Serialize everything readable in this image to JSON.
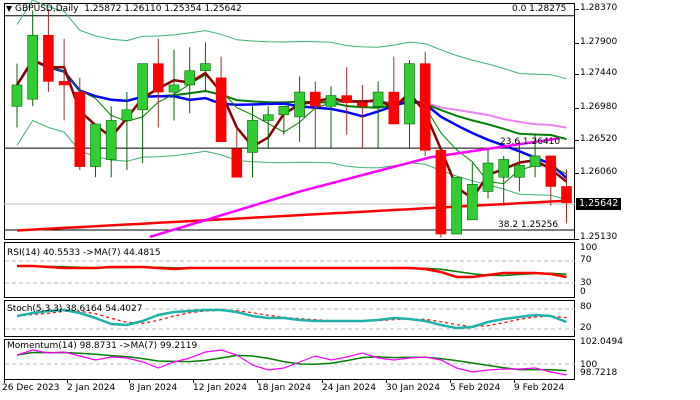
{
  "header": {
    "symbol": "GBPUSD,Daily",
    "ohlc": "1.25872 1.26110 1.25354 1.25642",
    "menu_icon": "triangle-down-icon"
  },
  "fib_levels": [
    {
      "label": "0.0 1.28275",
      "price": 1.28275
    },
    {
      "label": "23.6 1.26410",
      "price": 1.2641
    },
    {
      "label": "38.2 1.25256",
      "price": 1.25256
    }
  ],
  "price_axis": [
    "1.28370",
    "1.27900",
    "1.27440",
    "1.26980",
    "1.26520",
    "1.26060",
    "1.25130"
  ],
  "current_price": "1.25642",
  "indicators": {
    "rsi": {
      "label": "RSI(14) 40.5533  ->MA(7) 44.4815",
      "levels": [
        "100",
        "70",
        "30",
        "0"
      ]
    },
    "stoch": {
      "label": "Stoch(5,3,3) 38.6164 54.4027",
      "levels": [
        "80",
        "100",
        "20",
        "0"
      ]
    },
    "momentum": {
      "label": "Momentum(14) 98.8731  ->MA(7) 99.2119",
      "levels": [
        "102.0494",
        "100",
        "98.7218"
      ]
    }
  },
  "date_axis": [
    "26 Dec 2023",
    "2 Jan 2024",
    "8 Jan 2024",
    "12 Jan 2024",
    "18 Jan 2024",
    "24 Jan 2024",
    "30 Jan 2024",
    "5 Feb 2024",
    "9 Feb 2024"
  ],
  "colors": {
    "bull": "#32cd32",
    "bear": "#ff0000",
    "ma_blue": "#0000ff",
    "ma_maroon": "#8b0000",
    "ma_green": "#008000",
    "ma_violet": "#ee82ee",
    "ma_magenta": "#ff00ff",
    "bollinger": "#3cb371",
    "ma_red": "#ff0000"
  },
  "chart_data": {
    "type": "candlestick",
    "title": "GBPUSD, Daily",
    "x": [
      "26 Dec",
      "27 Dec",
      "28 Dec",
      "29 Dec",
      "2 Jan",
      "3 Jan",
      "4 Jan",
      "5 Jan",
      "8 Jan",
      "9 Jan",
      "10 Jan",
      "11 Jan",
      "12 Jan",
      "15 Jan",
      "16 Jan",
      "17 Jan",
      "18 Jan",
      "19 Jan",
      "22 Jan",
      "23 Jan",
      "24 Jan",
      "25 Jan",
      "26 Jan",
      "29 Jan",
      "30 Jan",
      "31 Jan",
      "1 Feb",
      "2 Feb",
      "5 Feb",
      "6 Feb",
      "7 Feb",
      "8 Feb",
      "9 Feb",
      "12 Feb",
      "13 Feb",
      "14 Feb"
    ],
    "series": [
      {
        "name": "open",
        "values": [
          1.27,
          1.271,
          1.28,
          1.2735,
          1.272,
          1.2615,
          1.2625,
          1.268,
          1.2695,
          1.276,
          1.272,
          1.273,
          1.275,
          1.274,
          1.264,
          1.2635,
          1.268,
          1.2688,
          1.2685,
          1.272,
          1.27,
          1.2715,
          1.2705,
          1.27,
          1.272,
          1.2675,
          1.276,
          1.2638,
          1.252,
          1.254,
          1.258,
          1.26,
          1.26,
          1.2615,
          1.263,
          1.2587
        ]
      },
      {
        "name": "high",
        "values": [
          1.276,
          1.2835,
          1.2837,
          1.2795,
          1.274,
          1.2675,
          1.27,
          1.272,
          1.275,
          1.2795,
          1.278,
          1.2783,
          1.279,
          1.277,
          1.2672,
          1.27,
          1.27,
          1.2698,
          1.2742,
          1.2735,
          1.2728,
          1.2755,
          1.273,
          1.2735,
          1.277,
          1.2765,
          1.2777,
          1.264,
          1.26,
          1.262,
          1.264,
          1.263,
          1.265,
          1.266,
          1.2605,
          1.2611
        ]
      },
      {
        "name": "low",
        "values": [
          1.267,
          1.27,
          1.272,
          1.268,
          1.261,
          1.26,
          1.26,
          1.261,
          1.262,
          1.267,
          1.268,
          1.269,
          1.272,
          1.266,
          1.262,
          1.26,
          1.264,
          1.266,
          1.265,
          1.264,
          1.264,
          1.266,
          1.264,
          1.264,
          1.27,
          1.264,
          1.263,
          1.2515,
          1.252,
          1.256,
          1.257,
          1.256,
          1.258,
          1.26,
          1.256,
          1.2535
        ]
      },
      {
        "name": "close",
        "values": [
          1.273,
          1.28,
          1.2735,
          1.273,
          1.2615,
          1.2675,
          1.268,
          1.2695,
          1.276,
          1.272,
          1.273,
          1.275,
          1.276,
          1.265,
          1.26,
          1.268,
          1.2688,
          1.27,
          1.272,
          1.27,
          1.2715,
          1.2705,
          1.27,
          1.272,
          1.2675,
          1.276,
          1.2638,
          1.252,
          1.26,
          1.259,
          1.262,
          1.2625,
          1.2617,
          1.263,
          1.2587,
          1.2564
        ]
      }
    ],
    "fibonacci": [
      {
        "level": 0.0,
        "price": 1.28275
      },
      {
        "level": 23.6,
        "price": 1.2641
      },
      {
        "level": 38.2,
        "price": 1.25256
      }
    ],
    "ylim": [
      1.25,
      1.284
    ],
    "yticks": [
      1.2837,
      1.279,
      1.2744,
      1.2698,
      1.2652,
      1.2606,
      1.2513
    ],
    "subcharts": [
      {
        "name": "RSI(14)",
        "value": 40.5533,
        "ma7": 44.4815,
        "levels": [
          30,
          70
        ],
        "ylim": [
          0,
          100
        ]
      },
      {
        "name": "Stoch(5,3,3)",
        "main": 38.6164,
        "signal": 54.4027,
        "levels": [
          20,
          80
        ],
        "ylim": [
          0,
          100
        ]
      },
      {
        "name": "Momentum(14)",
        "value": 98.8731,
        "ma7": 99.2119,
        "level": 100,
        "ylim": [
          98.7218,
          102.0494
        ]
      }
    ],
    "xlabel": "",
    "ylabel": "",
    "grid": false
  }
}
